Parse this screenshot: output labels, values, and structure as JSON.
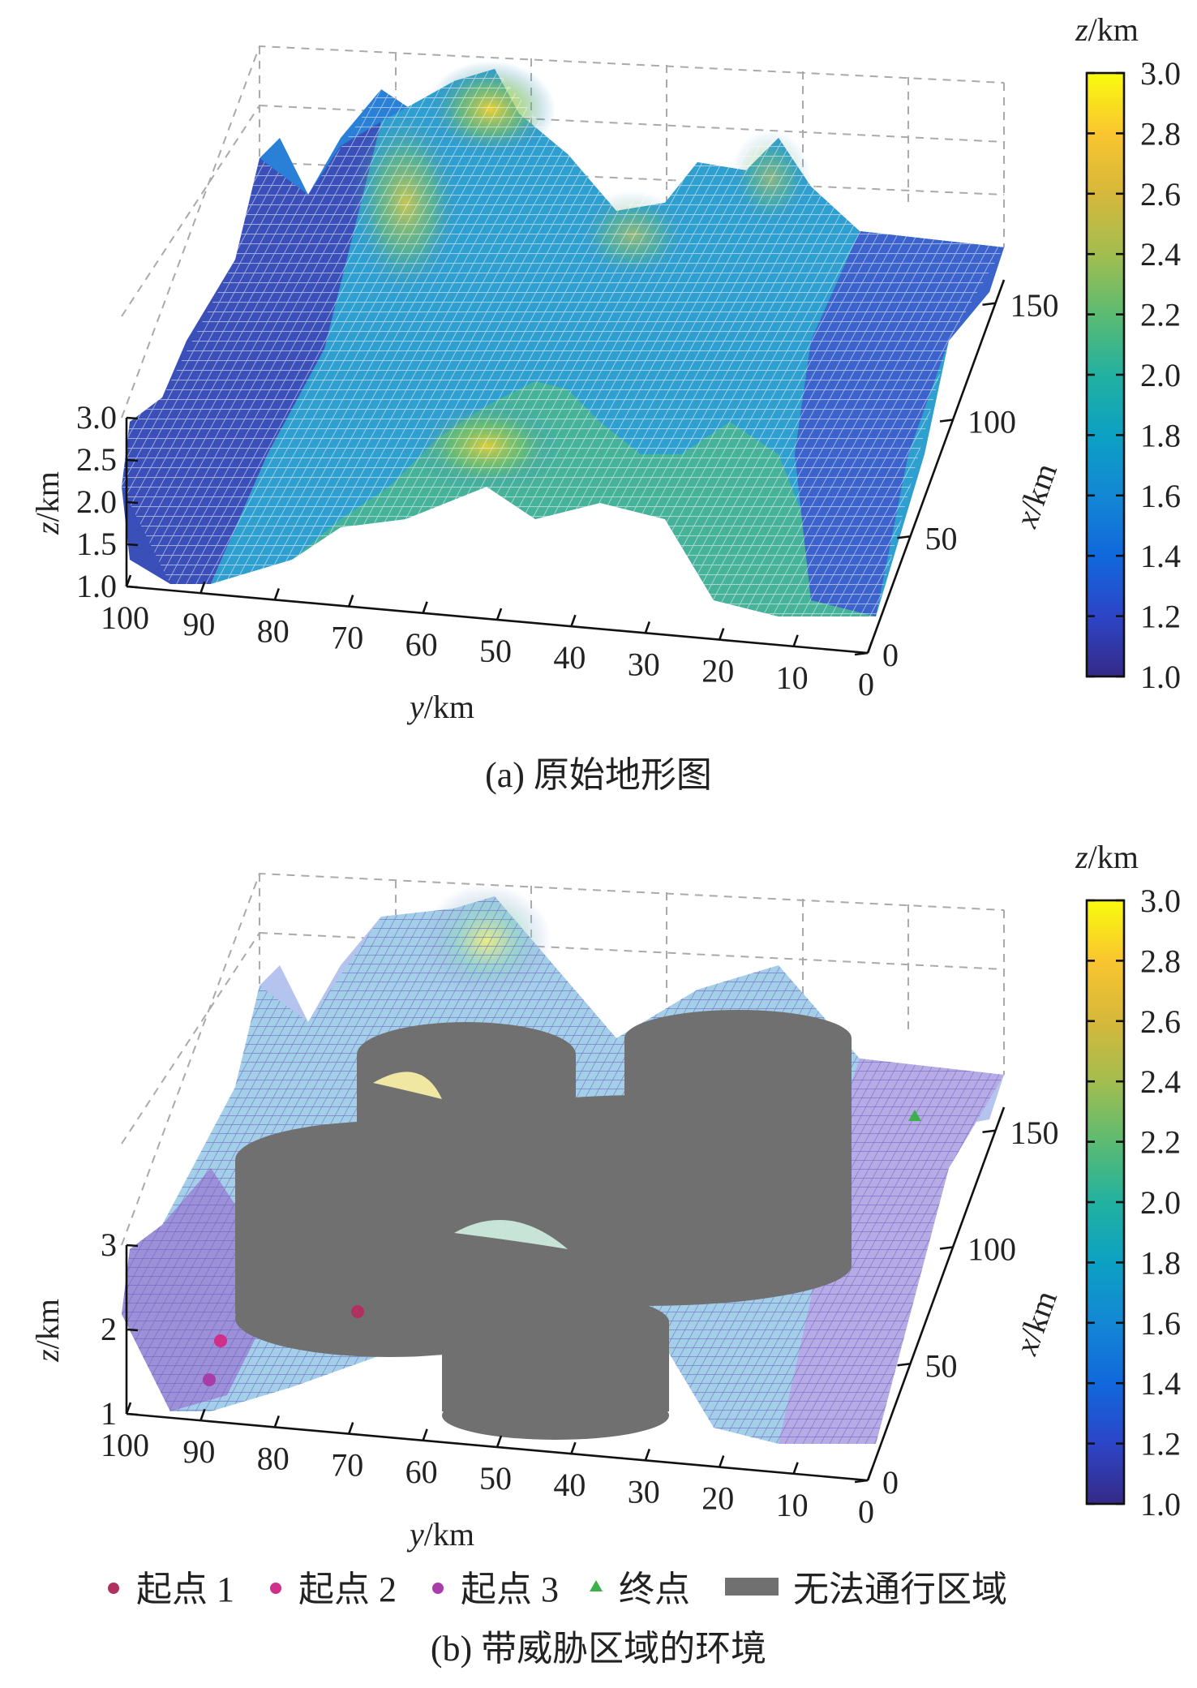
{
  "chart_data": [
    {
      "type": "surface3d",
      "caption": "(a) 原始地形图",
      "xlabel": "x/km",
      "ylabel": "y/km",
      "zlabel": "z/km",
      "x_ticks": [
        "0",
        "50",
        "100",
        "150"
      ],
      "y_ticks": [
        "100",
        "90",
        "80",
        "70",
        "60",
        "50",
        "40",
        "30",
        "20",
        "10",
        "0"
      ],
      "z_ticks": [
        "1.0",
        "1.5",
        "2.0",
        "2.5",
        "3.0"
      ],
      "xlim": [
        0,
        160
      ],
      "ylim": [
        0,
        100
      ],
      "zlim": [
        1.0,
        3.0
      ],
      "colorbar": {
        "label": "z/km",
        "ticks": [
          "3.0",
          "2.8",
          "2.6",
          "2.4",
          "2.2",
          "2.0",
          "1.8",
          "1.6",
          "1.4",
          "1.2",
          "1.0"
        ],
        "range": [
          1.0,
          3.0
        ],
        "colors": [
          "#352a87",
          "#2c45c7",
          "#1168dc",
          "#1387d4",
          "#0ca1c3",
          "#22b1a0",
          "#5cbb72",
          "#a3bd4f",
          "#d6b83b",
          "#f9c52f",
          "#f9fb0e"
        ]
      },
      "peaks": [
        {
          "x": 140,
          "y": 55,
          "z": 3.0
        },
        {
          "x": 150,
          "y": 28,
          "z": 2.7
        },
        {
          "x": 75,
          "y": 62,
          "z": 2.6
        },
        {
          "x": 130,
          "y": 35,
          "z": 2.3
        },
        {
          "x": 95,
          "y": 40,
          "z": 2.3
        },
        {
          "x": 160,
          "y": 87,
          "z": 2.2
        },
        {
          "x": 50,
          "y": 45,
          "z": 2.0
        }
      ]
    },
    {
      "type": "surface3d",
      "caption": "(b) 带威胁区域的环境",
      "xlabel": "x/km",
      "ylabel": "y/km",
      "zlabel": "z/km",
      "x_ticks": [
        "0",
        "50",
        "100",
        "150"
      ],
      "y_ticks": [
        "100",
        "90",
        "80",
        "70",
        "60",
        "50",
        "40",
        "30",
        "20",
        "10",
        "0"
      ],
      "z_ticks": [
        "1",
        "2",
        "3"
      ],
      "xlim": [
        0,
        160
      ],
      "ylim": [
        0,
        100
      ],
      "zlim": [
        1,
        3
      ],
      "colorbar": {
        "label": "z/km",
        "ticks": [
          "3.0",
          "2.8",
          "2.6",
          "2.4",
          "2.2",
          "2.0",
          "1.8",
          "1.6",
          "1.4",
          "1.2",
          "1.0"
        ],
        "range": [
          1.0,
          3.0
        ]
      },
      "legend": {
        "placement": "bottom",
        "items": [
          {
            "label": "起点 1",
            "marker": "dot",
            "color": "#b03060"
          },
          {
            "label": "起点 2",
            "marker": "dot",
            "color": "#d0308a"
          },
          {
            "label": "起点 3",
            "marker": "dot",
            "color": "#a83ca8"
          },
          {
            "label": "终点",
            "marker": "triangle",
            "color": "#3cb04a"
          },
          {
            "label": "无法通行区域",
            "marker": "rect",
            "color": "#707070"
          }
        ]
      },
      "points": [
        {
          "series": "起点 1",
          "x": 30,
          "y": 65
        },
        {
          "series": "起点 2",
          "x": 15,
          "y": 90
        },
        {
          "series": "起点 3",
          "x": 5,
          "y": 90
        },
        {
          "series": "终点",
          "x": 150,
          "y": 8
        }
      ],
      "threat_cylinders": [
        {
          "x": 120,
          "y": 62
        },
        {
          "x": 125,
          "y": 28
        },
        {
          "x": 85,
          "y": 73
        },
        {
          "x": 70,
          "y": 38
        },
        {
          "x": 25,
          "y": 44
        }
      ]
    }
  ]
}
